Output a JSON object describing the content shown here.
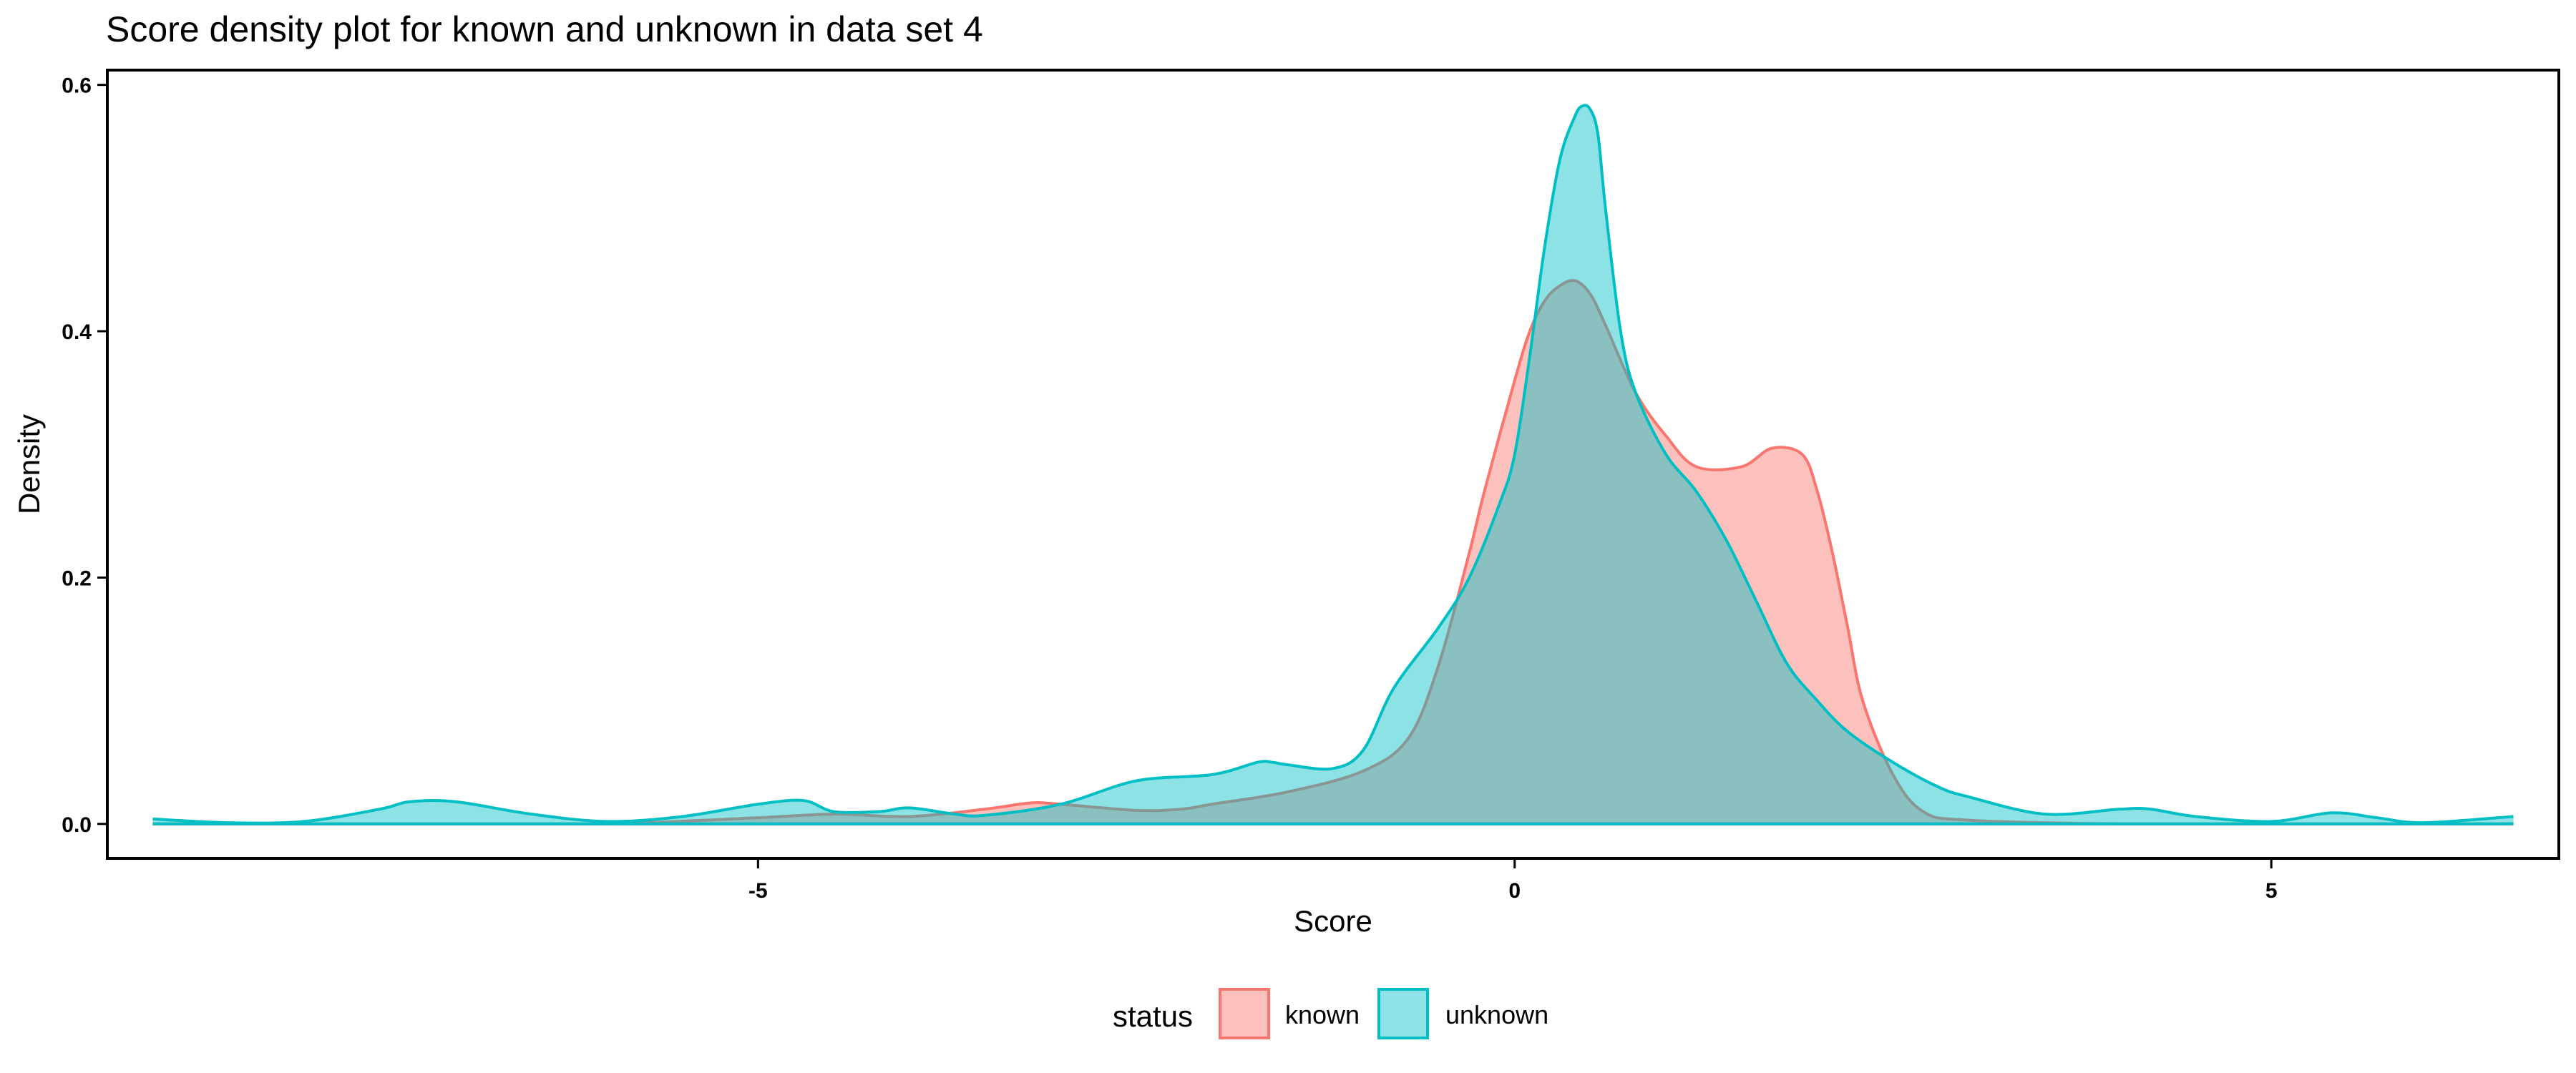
{
  "chart_data": {
    "type": "area",
    "title": "Score density plot for known and unknown in data set 4",
    "xlabel": "Score",
    "ylabel": "Density",
    "xlim": [
      -9.3,
      6.9
    ],
    "ylim": [
      -0.028,
      0.612
    ],
    "x_ticks": [
      -5,
      0,
      5
    ],
    "x_tick_labels": [
      "-5",
      "0",
      "5"
    ],
    "y_ticks": [
      0.0,
      0.2,
      0.4,
      0.6
    ],
    "y_tick_labels": [
      "0.0",
      "0.2",
      "0.4",
      "0.6"
    ],
    "grid": false,
    "legend": {
      "title": "status",
      "position": "bottom"
    },
    "series": [
      {
        "name": "known",
        "color": "#F8766D",
        "fill": "#F8766D",
        "x": [
          -9.0,
          -8.0,
          -7.0,
          -6.0,
          -5.0,
          -4.5,
          -4.0,
          -3.5,
          -3.2,
          -3.0,
          -2.5,
          -2.2,
          -2.0,
          -1.5,
          -1.0,
          -0.7,
          -0.5,
          -0.3,
          -0.2,
          0.0,
          0.1,
          0.2,
          0.3,
          0.4,
          0.5,
          0.6,
          0.8,
          1.0,
          1.2,
          1.5,
          1.7,
          1.9,
          2.0,
          2.1,
          2.2,
          2.3,
          2.5,
          2.7,
          3.0,
          4.0,
          5.0,
          6.6
        ],
        "y": [
          0.0,
          0.0,
          0.0,
          0.0,
          0.005,
          0.008,
          0.006,
          0.012,
          0.017,
          0.016,
          0.011,
          0.012,
          0.016,
          0.026,
          0.043,
          0.07,
          0.13,
          0.22,
          0.27,
          0.36,
          0.4,
          0.425,
          0.437,
          0.441,
          0.43,
          0.405,
          0.35,
          0.315,
          0.29,
          0.29,
          0.305,
          0.3,
          0.27,
          0.22,
          0.16,
          0.1,
          0.04,
          0.01,
          0.003,
          0.0,
          0.0,
          0.0
        ]
      },
      {
        "name": "unknown",
        "color": "#00BFC4",
        "fill": "#00BFC4",
        "x": [
          -9.0,
          -8.5,
          -8.0,
          -7.5,
          -7.3,
          -7.0,
          -6.5,
          -6.0,
          -5.5,
          -5.0,
          -4.7,
          -4.5,
          -4.2,
          -4.0,
          -3.7,
          -3.5,
          -3.0,
          -2.5,
          -2.0,
          -1.7,
          -1.6,
          -1.5,
          -1.2,
          -1.0,
          -0.8,
          -0.5,
          -0.3,
          -0.1,
          0.0,
          0.1,
          0.2,
          0.3,
          0.4,
          0.45,
          0.5,
          0.55,
          0.6,
          0.7,
          0.8,
          1.0,
          1.2,
          1.4,
          1.6,
          1.8,
          2.0,
          2.2,
          2.5,
          2.8,
          3.0,
          3.5,
          4.0,
          4.2,
          4.5,
          5.0,
          5.4,
          5.7,
          6.0,
          6.6
        ],
        "y": [
          0.004,
          0.001,
          0.002,
          0.012,
          0.018,
          0.018,
          0.008,
          0.002,
          0.006,
          0.016,
          0.019,
          0.01,
          0.01,
          0.013,
          0.008,
          0.007,
          0.016,
          0.035,
          0.04,
          0.05,
          0.05,
          0.048,
          0.045,
          0.06,
          0.11,
          0.16,
          0.2,
          0.26,
          0.3,
          0.38,
          0.47,
          0.54,
          0.575,
          0.583,
          0.58,
          0.56,
          0.5,
          0.4,
          0.35,
          0.3,
          0.27,
          0.23,
          0.18,
          0.13,
          0.1,
          0.075,
          0.05,
          0.03,
          0.022,
          0.008,
          0.012,
          0.012,
          0.006,
          0.002,
          0.009,
          0.005,
          0.001,
          0.006
        ]
      }
    ]
  }
}
